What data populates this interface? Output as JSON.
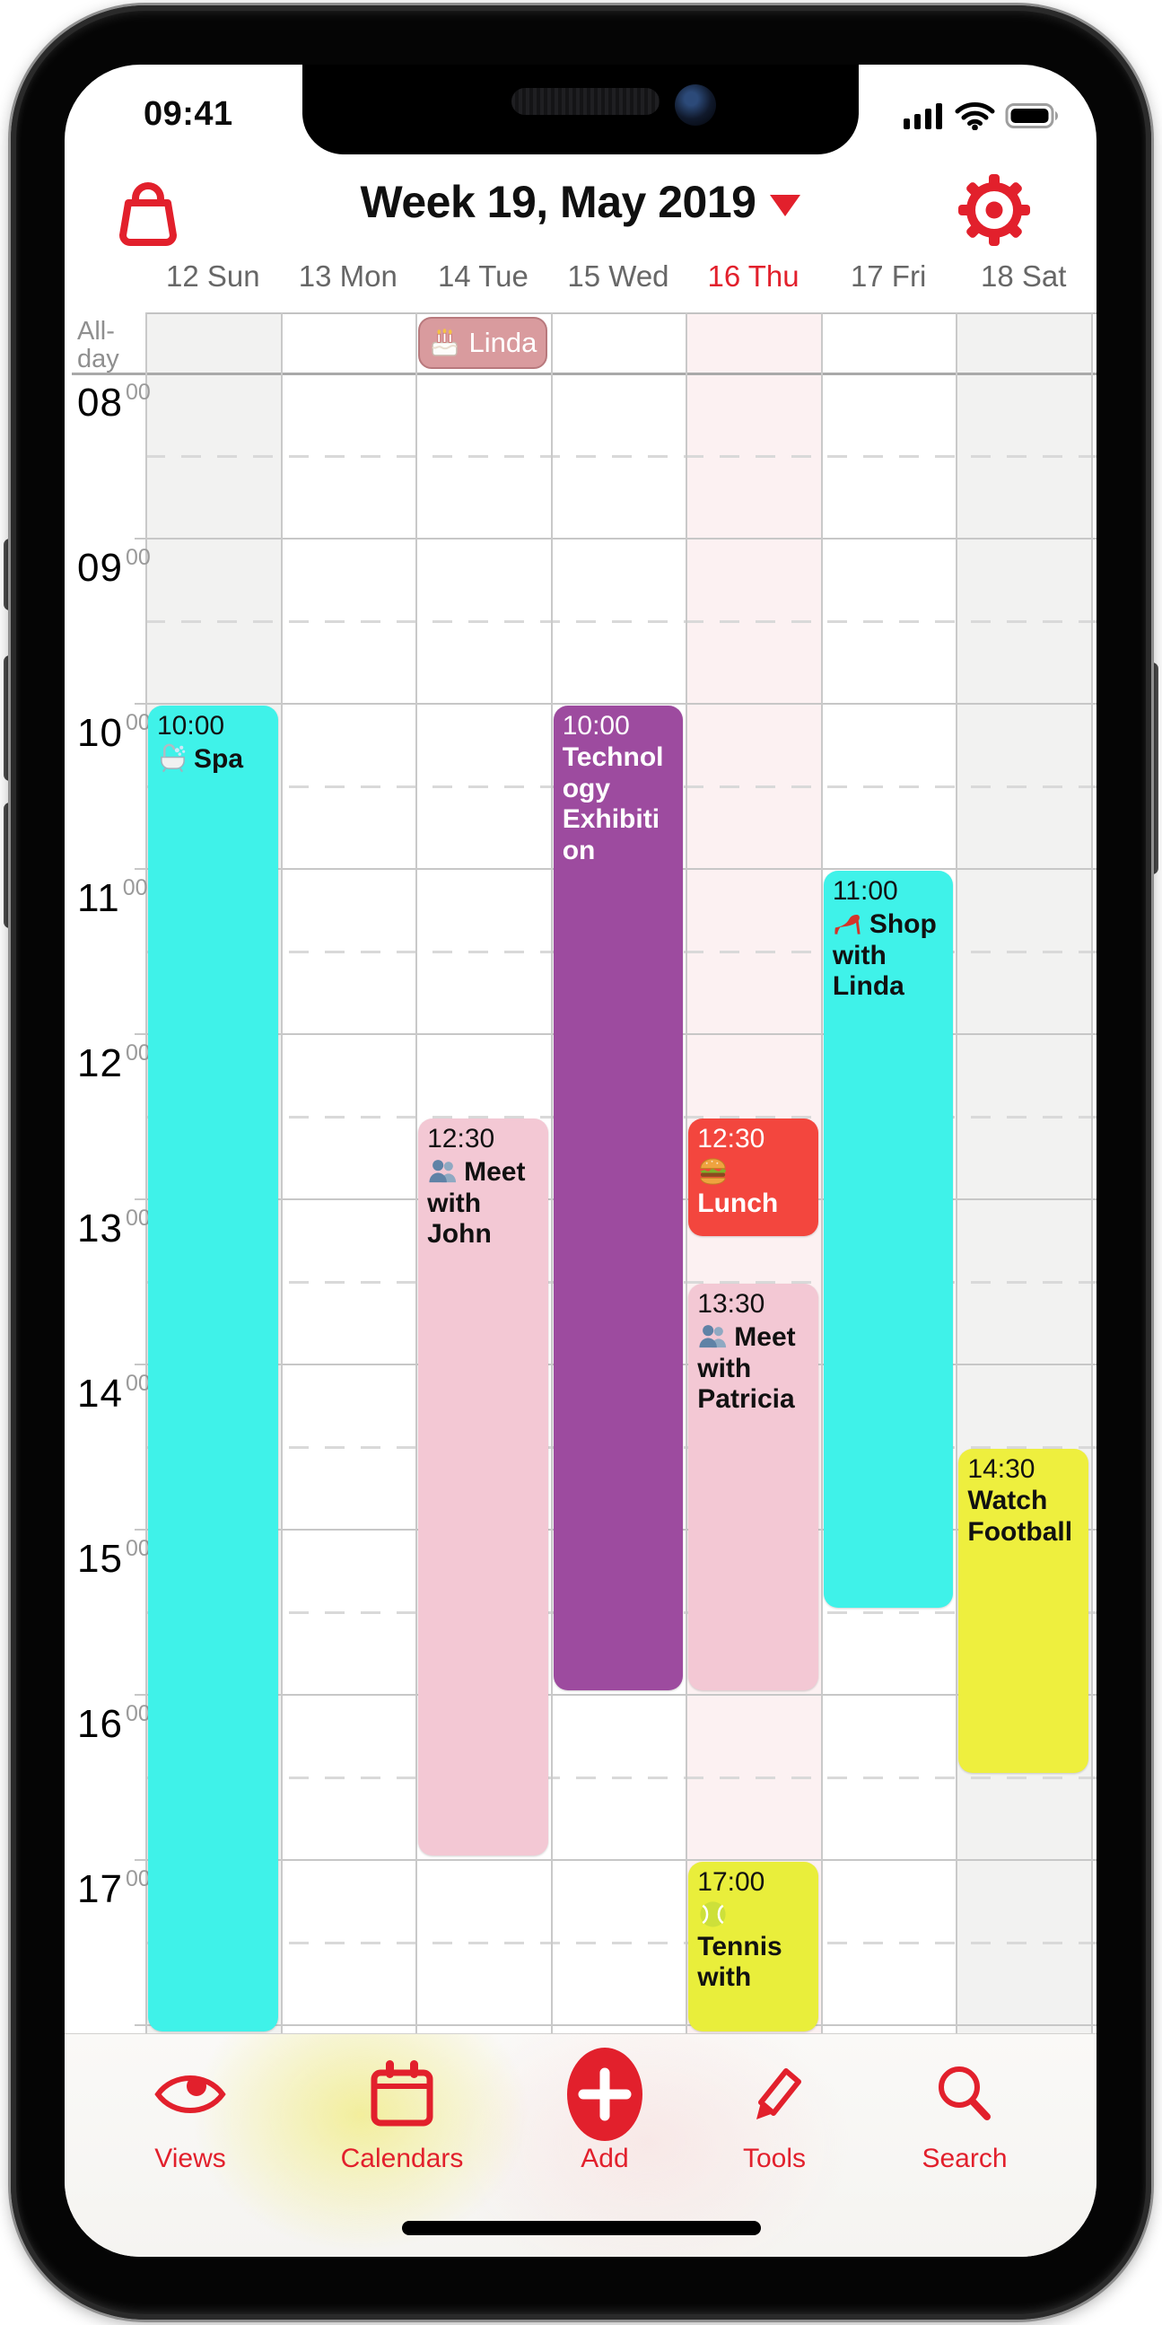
{
  "status_bar": {
    "time": "09:41",
    "signal_icon": "cellular-bars",
    "wifi_icon": "wifi",
    "battery_icon": "battery-full"
  },
  "header": {
    "shop_icon": "shopping-bag",
    "title": "Week 19, May 2019",
    "title_dropdown_icon": "triangle-down",
    "settings_icon": "gear",
    "accent_color": "#E2202C"
  },
  "day_header": {
    "days": [
      {
        "label": "12 Sun",
        "weekend": true,
        "today": false
      },
      {
        "label": "13 Mon",
        "weekend": false,
        "today": false
      },
      {
        "label": "14 Tue",
        "weekend": false,
        "today": false
      },
      {
        "label": "15 Wed",
        "weekend": false,
        "today": false
      },
      {
        "label": "16 Thu",
        "weekend": false,
        "today": true
      },
      {
        "label": "17 Fri",
        "weekend": false,
        "today": false
      },
      {
        "label": "18 Sat",
        "weekend": true,
        "today": false
      }
    ]
  },
  "time_gutter": {
    "allday_label_lines": [
      "All-",
      "day"
    ],
    "hours": [
      {
        "hour": "08",
        "minute": "00"
      },
      {
        "hour": "09",
        "minute": "00"
      },
      {
        "hour": "10",
        "minute": "00"
      },
      {
        "hour": "11",
        "minute": "00"
      },
      {
        "hour": "12",
        "minute": "00"
      },
      {
        "hour": "13",
        "minute": "00"
      },
      {
        "hour": "14",
        "minute": "00"
      },
      {
        "hour": "15",
        "minute": "00"
      },
      {
        "hour": "16",
        "minute": "00"
      },
      {
        "hour": "17",
        "minute": "00"
      }
    ]
  },
  "all_day_events": [
    {
      "day_index": 2,
      "title": "Linda",
      "emoji": "birthday-cake",
      "bg": "#D99B9E",
      "border": "#B8797D",
      "text_color": "#FFFFFF"
    }
  ],
  "events": [
    {
      "day_index": 0,
      "start": "10:00",
      "end": "18:00",
      "time_label": "10:00",
      "title": "Spa",
      "emoji": "bathtub",
      "bg": "#3FF2E9",
      "text_color": "#111111",
      "runs_to_bottom": true
    },
    {
      "day_index": 2,
      "start": "12:30",
      "end": "17:00",
      "time_label": "12:30",
      "title": "Meet with John",
      "emoji": "two-people",
      "bg": "#F3C8D4",
      "text_color": "#111111",
      "runs_to_bottom": false
    },
    {
      "day_index": 3,
      "start": "10:00",
      "end": "16:00",
      "time_label": "10:00",
      "title": "Technology Exhibition",
      "emoji": null,
      "bg": "#9D4B9F",
      "text_color": "#FFFFFF",
      "runs_to_bottom": false
    },
    {
      "day_index": 4,
      "start": "12:30",
      "end": "13:15",
      "time_label": "12:30",
      "title": "Lunch",
      "emoji": "burger",
      "bg": "#F3463E",
      "text_color": "#FFFFFF",
      "runs_to_bottom": false
    },
    {
      "day_index": 4,
      "start": "13:30",
      "end": "16:00",
      "time_label": "13:30",
      "title": "Meet with Patricia",
      "emoji": "two-people",
      "bg": "#F3C8D4",
      "text_color": "#111111",
      "runs_to_bottom": false
    },
    {
      "day_index": 4,
      "start": "17:00",
      "end": "18:00",
      "time_label": "17:00",
      "title": "Tennis with",
      "emoji": "tennis-ball",
      "bg": "#E9EE3B",
      "text_color": "#111111",
      "runs_to_bottom": true
    },
    {
      "day_index": 5,
      "start": "11:00",
      "end": "15:30",
      "time_label": "11:00",
      "title": "Shop with Linda",
      "emoji": "high-heel",
      "bg": "#3FF2E9",
      "text_color": "#111111",
      "runs_to_bottom": false
    },
    {
      "day_index": 6,
      "start": "14:30",
      "end": "16:30",
      "time_label": "14:30",
      "title": "Watch Football",
      "emoji": null,
      "bg": "#EEEF3E",
      "text_color": "#111111",
      "runs_to_bottom": false
    }
  ],
  "toolbar": {
    "items": [
      {
        "label": "Views",
        "icon": "eye"
      },
      {
        "label": "Calendars",
        "icon": "calendar"
      },
      {
        "label": "Add",
        "icon": "plus-circle"
      },
      {
        "label": "Tools",
        "icon": "pencil"
      },
      {
        "label": "Search",
        "icon": "magnifier"
      }
    ]
  },
  "colors": {
    "accent": "#E2202C",
    "today_column_tint": "#FCF1F2",
    "weekend_column_tint": "#F2F2F1",
    "hour_line": "#C7C7C7",
    "half_hour_line": "#D9D9D9",
    "column_line": "#C9C9C9",
    "day_label_gray": "#676767"
  }
}
